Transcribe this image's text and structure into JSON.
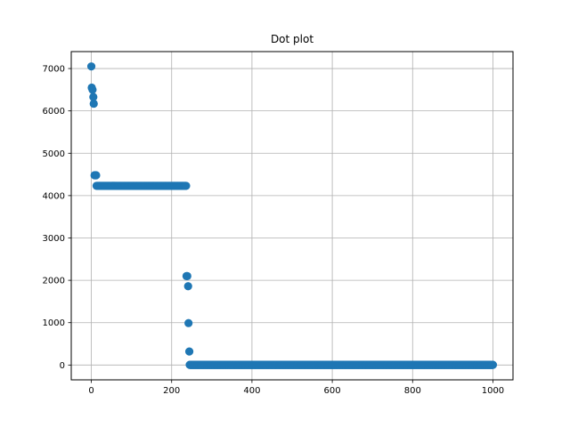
{
  "chart_data": {
    "type": "scatter",
    "title": "Dot plot",
    "xlabel": "",
    "ylabel": "",
    "xlim": [
      -50,
      1050
    ],
    "ylim": [
      -350,
      7400
    ],
    "xticks": [
      0,
      200,
      400,
      600,
      800,
      1000
    ],
    "yticks": [
      0,
      1000,
      2000,
      3000,
      4000,
      5000,
      6000,
      7000
    ],
    "grid": true,
    "color": "#1f77b4",
    "points": [
      [
        0,
        7050
      ],
      [
        1,
        6550
      ],
      [
        3,
        6500
      ],
      [
        5,
        6330
      ],
      [
        6,
        6170
      ],
      [
        8,
        4480
      ],
      [
        10,
        4480
      ],
      [
        12,
        4480
      ],
      [
        237,
        2100
      ],
      [
        239,
        2100
      ],
      [
        241,
        1860
      ],
      [
        242,
        990
      ],
      [
        244,
        320
      ]
    ],
    "dense_segments": [
      {
        "x_start": 13,
        "x_end": 236,
        "step": 1,
        "y": 4230
      },
      {
        "x_start": 245,
        "x_end": 1000,
        "step": 1,
        "y": 5
      }
    ]
  }
}
